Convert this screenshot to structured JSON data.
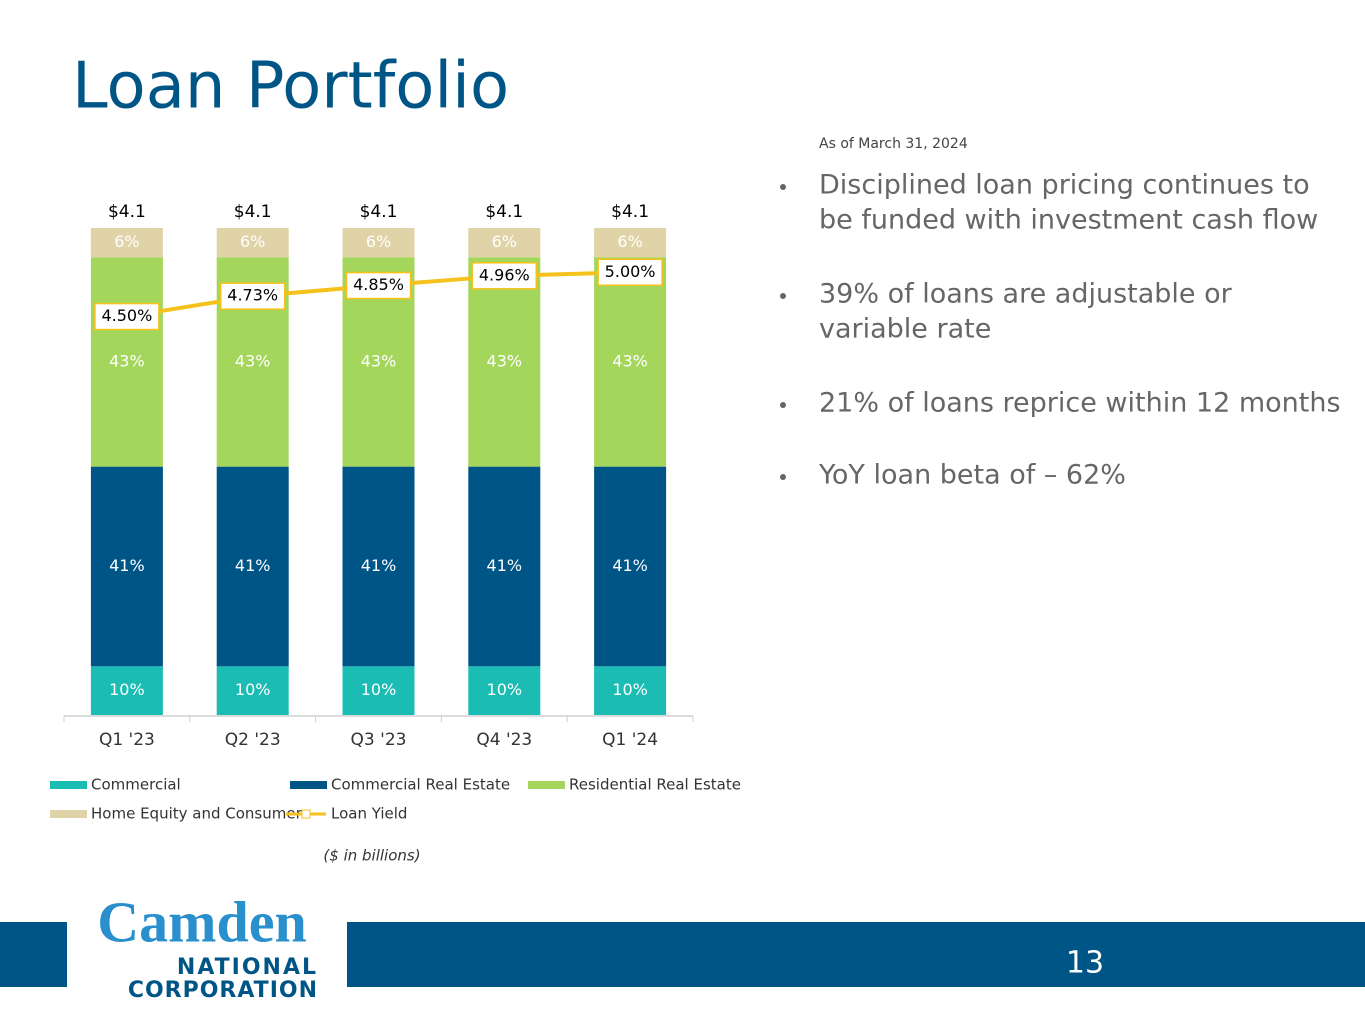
{
  "slide": {
    "title": "Loan Portfolio",
    "as_of": "As of March 31, 2024",
    "bullets": [
      [
        "Disciplined loan pricing continues to",
        "be funded with investment cash flow"
      ],
      [
        "39% of loans are adjustable or",
        "variable rate"
      ],
      [
        "21% of loans reprice within 12 months"
      ],
      [
        "YoY loan beta of – 62%"
      ]
    ],
    "note": "($ in billions)",
    "page_number": "13",
    "logo": [
      "Camden",
      "NATIONAL",
      "CORPORATION"
    ]
  },
  "chart_data": {
    "type": "stacked_bar_line",
    "categories": [
      "Q1 '23",
      "Q2 '23",
      "Q3 '23",
      "Q4 '23",
      "Q1 '24"
    ],
    "ylim": [
      0,
      100
    ],
    "y2lim": [
      0,
      5.5
    ],
    "series": [
      {
        "name": "Commercial",
        "color": "#1bbcb4",
        "values": [
          10,
          10,
          10,
          10,
          10
        ],
        "value_labels": [
          "10%",
          "10%",
          "10%",
          "10%",
          "10%"
        ]
      },
      {
        "name": "Commercial Real Estate",
        "color": "#005587",
        "values": [
          41,
          41,
          41,
          41,
          41
        ],
        "value_labels": [
          "41%",
          "41%",
          "41%",
          "41%",
          "41%"
        ]
      },
      {
        "name": "Residential Real Estate",
        "color": "#a5d65c",
        "values": [
          43,
          43,
          43,
          43,
          43
        ],
        "value_labels": [
          "43%",
          "43%",
          "43%",
          "43%",
          "43%"
        ]
      },
      {
        "name": "Home Equity and Consumer",
        "color": "#e0d3a8",
        "values": [
          6,
          6,
          6,
          6,
          6
        ],
        "value_labels": [
          "6%",
          "6%",
          "6%",
          "6%",
          "6%"
        ]
      },
      {
        "name": "Loan Yield",
        "color": "#f5c11a",
        "axis": "y2",
        "values": [
          4.5,
          4.73,
          4.85,
          4.96,
          5.0
        ],
        "value_labels": [
          "4.50%",
          "4.73%",
          "4.85%",
          "4.96%",
          "5.00%"
        ]
      }
    ],
    "totals": {
      "values": [
        4.1,
        4.1,
        4.1,
        4.1,
        4.1
      ],
      "value_labels": [
        "$4.1",
        "$4.1",
        "$4.1",
        "$4.1",
        "$4.1"
      ]
    }
  }
}
